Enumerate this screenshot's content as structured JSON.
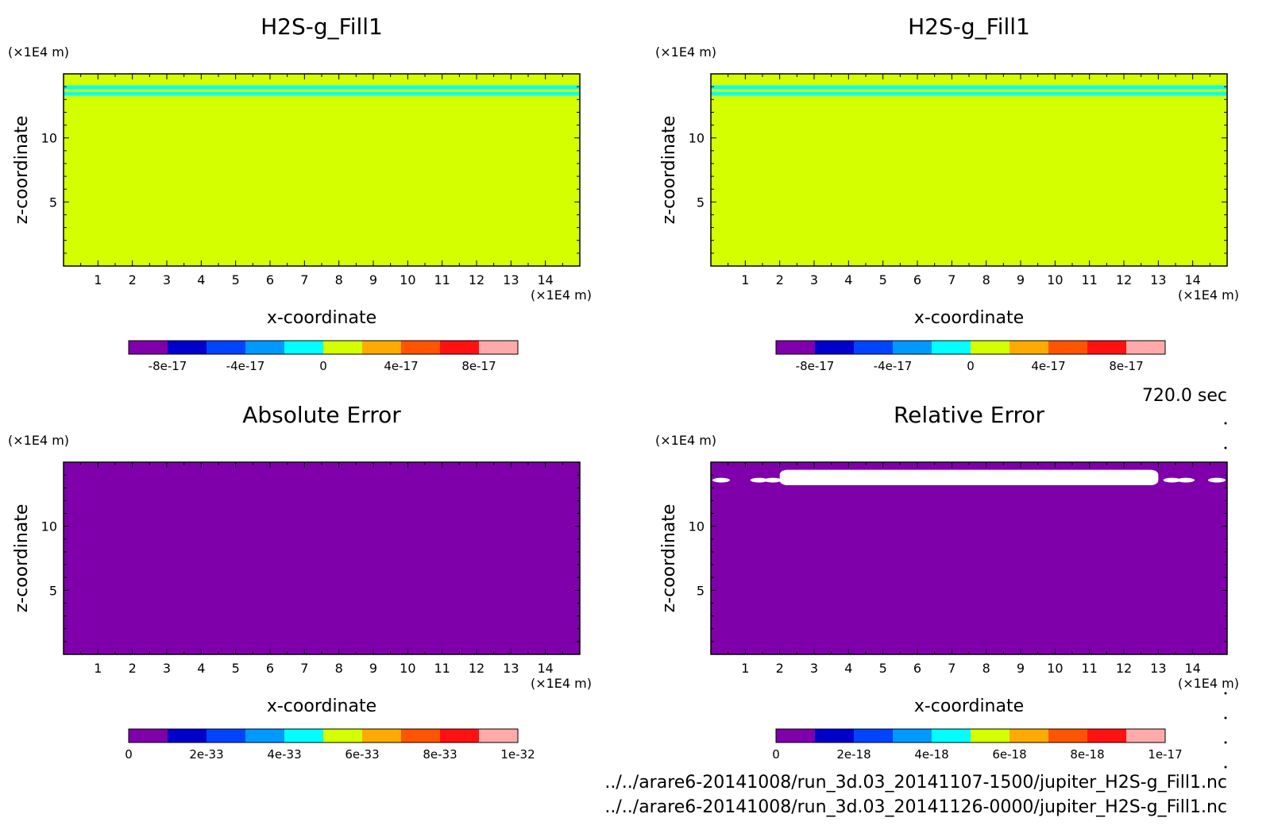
{
  "figure": {
    "time_label": "720.0 sec",
    "footer_files": [
      "../../arare6-20141008/run_3d.03_20141107-1500/jupiter_H2S-g_Fill1.nc",
      "../../arare6-20141008/run_3d.03_20141126-0000/jupiter_H2S-g_Fill1.nc"
    ],
    "palette": [
      "#7f00aa",
      "#0000cc",
      "#0044ff",
      "#0099ff",
      "#00ffff",
      "#d4ff00",
      "#ffaa00",
      "#ff5500",
      "#ff1111",
      "#ffaaaa"
    ],
    "white_region_color": "#ffffff"
  },
  "chart_data": [
    {
      "type": "heatmap",
      "title": "H2S-g_Fill1",
      "xlabel": "x-coordinate",
      "ylabel": "z-coordinate",
      "x_unit": "(×1E4 m)",
      "y_unit": "(×1E4 m)",
      "xlim": [
        0,
        15
      ],
      "ylim": [
        0,
        15
      ],
      "xticks": [
        1,
        2,
        3,
        4,
        5,
        6,
        7,
        8,
        9,
        10,
        11,
        12,
        13,
        14
      ],
      "yticks": [
        5,
        10
      ],
      "fill_color": "#d4ff00",
      "bands": [
        {
          "z_range": [
            13.3,
            13.6
          ],
          "color": "#00ffff"
        },
        {
          "z_range": [
            13.8,
            14.1
          ],
          "color": "#00ffff"
        }
      ],
      "colorbar": {
        "range": [
          -1e-16,
          1e-16
        ],
        "levels": 10,
        "tick_values": [
          -8e-17,
          -4e-17,
          0,
          4e-17,
          8e-17
        ],
        "tick_labels": [
          "-8e-17",
          "-4e-17",
          "0",
          "4e-17",
          "8e-17"
        ]
      }
    },
    {
      "type": "heatmap",
      "title": "H2S-g_Fill1",
      "xlabel": "x-coordinate",
      "ylabel": "z-coordinate",
      "x_unit": "(×1E4 m)",
      "y_unit": "(×1E4 m)",
      "xlim": [
        0,
        15
      ],
      "ylim": [
        0,
        15
      ],
      "xticks": [
        1,
        2,
        3,
        4,
        5,
        6,
        7,
        8,
        9,
        10,
        11,
        12,
        13,
        14
      ],
      "yticks": [
        5,
        10
      ],
      "fill_color": "#d4ff00",
      "bands": [
        {
          "z_range": [
            13.3,
            13.6
          ],
          "color": "#00ffff"
        },
        {
          "z_range": [
            13.8,
            14.1
          ],
          "color": "#00ffff"
        }
      ],
      "colorbar": {
        "range": [
          -1e-16,
          1e-16
        ],
        "levels": 10,
        "tick_values": [
          -8e-17,
          -4e-17,
          0,
          4e-17,
          8e-17
        ],
        "tick_labels": [
          "-8e-17",
          "-4e-17",
          "0",
          "4e-17",
          "8e-17"
        ]
      }
    },
    {
      "type": "heatmap",
      "title": "Absolute Error",
      "xlabel": "x-coordinate",
      "ylabel": "z-coordinate",
      "x_unit": "(×1E4 m)",
      "y_unit": "(×1E4 m)",
      "xlim": [
        0,
        15
      ],
      "ylim": [
        0,
        15
      ],
      "xticks": [
        1,
        2,
        3,
        4,
        5,
        6,
        7,
        8,
        9,
        10,
        11,
        12,
        13,
        14
      ],
      "yticks": [
        5,
        10
      ],
      "fill_color": "#7f00aa",
      "bands": [],
      "colorbar": {
        "range": [
          0,
          1e-32
        ],
        "levels": 10,
        "tick_values": [
          0,
          2e-33,
          4e-33,
          6e-33,
          8e-33,
          1e-32
        ],
        "tick_labels": [
          "0",
          "2e-33",
          "4e-33",
          "6e-33",
          "8e-33",
          "1e-32"
        ]
      }
    },
    {
      "type": "heatmap",
      "title": "Relative Error",
      "xlabel": "x-coordinate",
      "ylabel": "z-coordinate",
      "x_unit": "(×1E4 m)",
      "y_unit": "(×1E4 m)",
      "xlim": [
        0,
        15
      ],
      "ylim": [
        0,
        15
      ],
      "xticks": [
        1,
        2,
        3,
        4,
        5,
        6,
        7,
        8,
        9,
        10,
        11,
        12,
        13,
        14
      ],
      "yticks": [
        5,
        10
      ],
      "fill_color": "#7f00aa",
      "bands": [],
      "undefined_region": {
        "color": "#ffffff",
        "main_block": {
          "x_range": [
            2.0,
            13.0
          ],
          "z_range": [
            13.2,
            14.4
          ]
        },
        "blobs": [
          {
            "x": 0.3,
            "z": 13.6
          },
          {
            "x": 1.4,
            "z": 13.6
          },
          {
            "x": 1.8,
            "z": 13.6
          },
          {
            "x": 13.4,
            "z": 13.6
          },
          {
            "x": 13.8,
            "z": 13.6
          },
          {
            "x": 14.7,
            "z": 13.6
          }
        ]
      },
      "colorbar": {
        "range": [
          0,
          1e-17
        ],
        "levels": 10,
        "tick_values": [
          0,
          2e-18,
          4e-18,
          6e-18,
          8e-18,
          1e-17
        ],
        "tick_labels": [
          "0",
          "2e-18",
          "4e-18",
          "6e-18",
          "8e-18",
          "1e-17"
        ]
      }
    }
  ]
}
